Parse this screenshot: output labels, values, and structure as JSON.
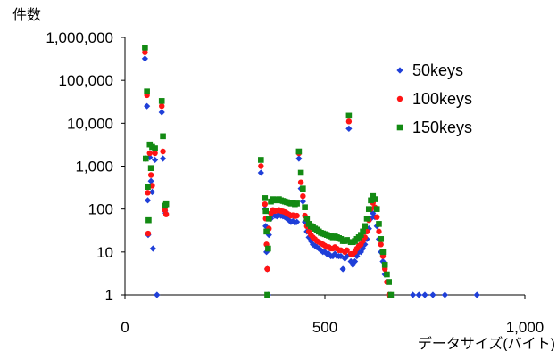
{
  "chart_data": {
    "type": "scatter",
    "ylabel": "件数",
    "xlabel": "データサイズ(バイト)",
    "xlim": [
      0,
      1000
    ],
    "ylim": [
      1,
      1000000
    ],
    "y_scale": "log",
    "grid": false,
    "legend_position": "top-right",
    "x_ticks": [
      {
        "value": 0,
        "label": "0"
      },
      {
        "value": 500,
        "label": "500"
      },
      {
        "value": 1000,
        "label": "1,000"
      }
    ],
    "y_ticks": [
      {
        "value": 1,
        "label": "1"
      },
      {
        "value": 10,
        "label": "10"
      },
      {
        "value": 100,
        "label": "100"
      },
      {
        "value": 1000,
        "label": "1,000"
      },
      {
        "value": 10000,
        "label": "10,000"
      },
      {
        "value": 100000,
        "label": "100,000"
      },
      {
        "value": 1000000,
        "label": "1,000,000"
      }
    ],
    "series": [
      {
        "name": "50keys",
        "color": "#1f3fd8",
        "marker": "diamond",
        "points": [
          [
            50,
            320000
          ],
          [
            52,
            1500
          ],
          [
            55,
            25000
          ],
          [
            57,
            160
          ],
          [
            58,
            25
          ],
          [
            62,
            1600
          ],
          [
            65,
            450
          ],
          [
            68,
            250
          ],
          [
            70,
            12
          ],
          [
            75,
            1400
          ],
          [
            80,
            1
          ],
          [
            92,
            18000
          ],
          [
            95,
            1500
          ],
          [
            100,
            90
          ],
          [
            102,
            80
          ],
          [
            340,
            700
          ],
          [
            350,
            100
          ],
          [
            352,
            40
          ],
          [
            354,
            10
          ],
          [
            356,
            4
          ],
          [
            358,
            1
          ],
          [
            360,
            25
          ],
          [
            365,
            60
          ],
          [
            370,
            75
          ],
          [
            375,
            70
          ],
          [
            380,
            68
          ],
          [
            385,
            72
          ],
          [
            390,
            70
          ],
          [
            395,
            68
          ],
          [
            400,
            65
          ],
          [
            405,
            60
          ],
          [
            410,
            55
          ],
          [
            415,
            50
          ],
          [
            420,
            52
          ],
          [
            425,
            48
          ],
          [
            430,
            50
          ],
          [
            435,
            1500
          ],
          [
            440,
            300
          ],
          [
            445,
            150
          ],
          [
            450,
            50
          ],
          [
            455,
            30
          ],
          [
            460,
            22
          ],
          [
            465,
            18
          ],
          [
            470,
            15
          ],
          [
            475,
            14
          ],
          [
            480,
            13
          ],
          [
            485,
            12
          ],
          [
            490,
            11
          ],
          [
            495,
            10
          ],
          [
            500,
            10
          ],
          [
            505,
            9
          ],
          [
            510,
            9
          ],
          [
            515,
            8
          ],
          [
            520,
            8
          ],
          [
            525,
            9
          ],
          [
            530,
            8
          ],
          [
            535,
            8
          ],
          [
            540,
            8
          ],
          [
            545,
            4
          ],
          [
            550,
            7
          ],
          [
            555,
            8
          ],
          [
            560,
            7500
          ],
          [
            565,
            6
          ],
          [
            570,
            5
          ],
          [
            575,
            6
          ],
          [
            580,
            8
          ],
          [
            585,
            10
          ],
          [
            590,
            10
          ],
          [
            595,
            12
          ],
          [
            600,
            15
          ],
          [
            605,
            20
          ],
          [
            610,
            35
          ],
          [
            615,
            60
          ],
          [
            620,
            80
          ],
          [
            625,
            65
          ],
          [
            630,
            40
          ],
          [
            635,
            20
          ],
          [
            640,
            10
          ],
          [
            645,
            6
          ],
          [
            650,
            3
          ],
          [
            655,
            2
          ],
          [
            660,
            1
          ],
          [
            665,
            1
          ],
          [
            720,
            1
          ],
          [
            735,
            1
          ],
          [
            750,
            1
          ],
          [
            770,
            1
          ],
          [
            800,
            1
          ],
          [
            880,
            1
          ]
        ]
      },
      {
        "name": "100keys",
        "color": "#ff1414",
        "marker": "circle",
        "points": [
          [
            50,
            450000
          ],
          [
            52,
            1500
          ],
          [
            55,
            45000
          ],
          [
            57,
            240
          ],
          [
            58,
            27
          ],
          [
            62,
            2000
          ],
          [
            65,
            620
          ],
          [
            68,
            350
          ],
          [
            75,
            2000
          ],
          [
            92,
            25000
          ],
          [
            95,
            2200
          ],
          [
            100,
            95
          ],
          [
            103,
            75
          ],
          [
            340,
            1000
          ],
          [
            350,
            130
          ],
          [
            352,
            60
          ],
          [
            354,
            15
          ],
          [
            356,
            4
          ],
          [
            360,
            35
          ],
          [
            365,
            80
          ],
          [
            370,
            95
          ],
          [
            375,
            90
          ],
          [
            380,
            92
          ],
          [
            385,
            95
          ],
          [
            390,
            90
          ],
          [
            395,
            88
          ],
          [
            400,
            85
          ],
          [
            405,
            80
          ],
          [
            410,
            75
          ],
          [
            415,
            70
          ],
          [
            420,
            72
          ],
          [
            425,
            68
          ],
          [
            430,
            70
          ],
          [
            435,
            2000
          ],
          [
            440,
            420
          ],
          [
            445,
            200
          ],
          [
            450,
            70
          ],
          [
            455,
            40
          ],
          [
            460,
            30
          ],
          [
            465,
            25
          ],
          [
            470,
            22
          ],
          [
            475,
            20
          ],
          [
            480,
            18
          ],
          [
            485,
            17
          ],
          [
            490,
            16
          ],
          [
            495,
            15
          ],
          [
            500,
            14
          ],
          [
            505,
            13
          ],
          [
            510,
            13
          ],
          [
            515,
            12
          ],
          [
            520,
            12
          ],
          [
            525,
            13
          ],
          [
            530,
            12
          ],
          [
            535,
            11
          ],
          [
            540,
            11
          ],
          [
            550,
            10
          ],
          [
            555,
            11
          ],
          [
            560,
            11000
          ],
          [
            565,
            9
          ],
          [
            570,
            9
          ],
          [
            575,
            10
          ],
          [
            580,
            12
          ],
          [
            585,
            14
          ],
          [
            590,
            15
          ],
          [
            595,
            18
          ],
          [
            600,
            22
          ],
          [
            605,
            30
          ],
          [
            610,
            55
          ],
          [
            615,
            100
          ],
          [
            620,
            140
          ],
          [
            625,
            110
          ],
          [
            630,
            65
          ],
          [
            635,
            30
          ],
          [
            640,
            15
          ],
          [
            645,
            8
          ],
          [
            650,
            4
          ],
          [
            655,
            2
          ],
          [
            660,
            1
          ],
          [
            665,
            1
          ]
        ]
      },
      {
        "name": "150keys",
        "color": "#138a13",
        "marker": "square",
        "points": [
          [
            50,
            580000
          ],
          [
            52,
            1500
          ],
          [
            55,
            55000
          ],
          [
            57,
            330
          ],
          [
            59,
            55
          ],
          [
            62,
            3200
          ],
          [
            65,
            900
          ],
          [
            68,
            2800
          ],
          [
            75,
            2600
          ],
          [
            92,
            33000
          ],
          [
            95,
            5000
          ],
          [
            100,
            120
          ],
          [
            103,
            130
          ],
          [
            340,
            1400
          ],
          [
            350,
            180
          ],
          [
            352,
            90
          ],
          [
            354,
            30
          ],
          [
            356,
            1
          ],
          [
            358,
            12
          ],
          [
            360,
            60
          ],
          [
            365,
            150
          ],
          [
            370,
            170
          ],
          [
            375,
            160
          ],
          [
            380,
            165
          ],
          [
            385,
            170
          ],
          [
            390,
            160
          ],
          [
            395,
            155
          ],
          [
            400,
            150
          ],
          [
            405,
            145
          ],
          [
            410,
            140
          ],
          [
            415,
            135
          ],
          [
            420,
            140
          ],
          [
            425,
            130
          ],
          [
            430,
            135
          ],
          [
            435,
            2200
          ],
          [
            440,
            700
          ],
          [
            445,
            300
          ],
          [
            450,
            110
          ],
          [
            455,
            60
          ],
          [
            460,
            45
          ],
          [
            465,
            40
          ],
          [
            470,
            38
          ],
          [
            475,
            35
          ],
          [
            480,
            33
          ],
          [
            485,
            30
          ],
          [
            490,
            28
          ],
          [
            495,
            27
          ],
          [
            500,
            26
          ],
          [
            505,
            25
          ],
          [
            510,
            24
          ],
          [
            515,
            23
          ],
          [
            520,
            22
          ],
          [
            525,
            23
          ],
          [
            530,
            22
          ],
          [
            535,
            21
          ],
          [
            540,
            20
          ],
          [
            545,
            18
          ],
          [
            550,
            18
          ],
          [
            555,
            19
          ],
          [
            560,
            15000
          ],
          [
            565,
            17
          ],
          [
            570,
            17
          ],
          [
            575,
            18
          ],
          [
            580,
            20
          ],
          [
            585,
            22
          ],
          [
            590,
            25
          ],
          [
            595,
            30
          ],
          [
            600,
            40
          ],
          [
            605,
            60
          ],
          [
            610,
            100
          ],
          [
            615,
            160
          ],
          [
            620,
            200
          ],
          [
            625,
            170
          ],
          [
            630,
            100
          ],
          [
            635,
            45
          ],
          [
            640,
            20
          ],
          [
            645,
            10
          ],
          [
            650,
            5
          ],
          [
            655,
            3
          ],
          [
            660,
            2
          ],
          [
            665,
            1
          ]
        ]
      }
    ]
  }
}
